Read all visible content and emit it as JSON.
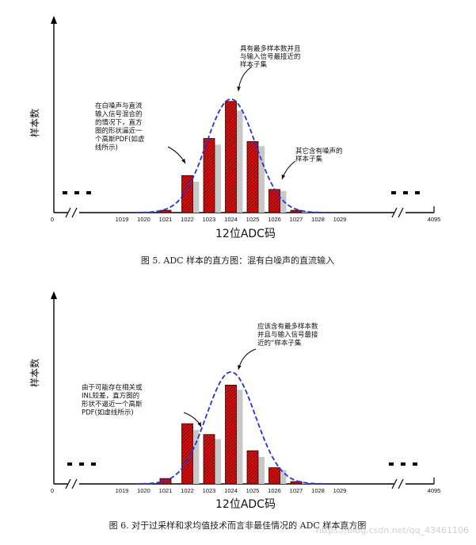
{
  "chart_data": [
    {
      "type": "bar",
      "caption": "图 5.   ADC 样本的直方图：混有白噪声的直流输入",
      "xlabel": "12位ADC码",
      "ylabel": "样本数",
      "x_edge_left": "0",
      "x_edge_right": "4095",
      "tick_labels": [
        "1019",
        "1020",
        "1021",
        "1022",
        "1023",
        "1024",
        "1025",
        "1026",
        "1027",
        "1028",
        "1029"
      ],
      "categories": [
        "1021",
        "1022",
        "1023",
        "1024",
        "1025",
        "1026",
        "1027"
      ],
      "series": [
        {
          "values": [
            3,
            48,
            96,
            144,
            92,
            30,
            3
          ]
        }
      ],
      "shadow_values": [
        0,
        40,
        88,
        132,
        86,
        28,
        2
      ],
      "ylim": [
        0,
        160
      ],
      "curve": {
        "mean": 1024,
        "sigma": 1.13,
        "peak": 147
      },
      "annotations": [
        {
          "lines": [
            "具有最多样本数并且",
            "与输入信号最接近的",
            "样本子集"
          ]
        },
        {
          "lines": [
            "在白噪声与直流",
            "输入信号混合的",
            "的情况下，直方",
            "图的形状逼近一",
            "个高斯PDF(如虚",
            "线所示)"
          ]
        },
        {
          "lines": [
            "其它含有噪声的",
            "样本子集"
          ]
        }
      ]
    },
    {
      "type": "bar",
      "caption": "图 6.  对于过采样和求均值技术而言非最佳情况的 ADC 样本直方图",
      "xlabel": "12位ADC码",
      "ylabel": "样本数",
      "x_edge_left": "0",
      "x_edge_right": "4095",
      "tick_labels": [
        "1019",
        "1020",
        "1021",
        "1022",
        "1023",
        "1024",
        "1025",
        "1026",
        "1027",
        "1028",
        "1029"
      ],
      "categories": [
        "1021",
        "1022",
        "1023",
        "1024",
        "1025",
        "1026",
        "1027"
      ],
      "series": [
        {
          "values": [
            7,
            78,
            64,
            128,
            43,
            21,
            3
          ]
        }
      ],
      "shadow_values": [
        0,
        70,
        58,
        122,
        35,
        18,
        2
      ],
      "ylim": [
        0,
        160
      ],
      "curve": {
        "mean": 1024,
        "sigma": 1.13,
        "peak": 145
      },
      "annotations": [
        {
          "lines": [
            "应该含有最多样本数",
            "并且与输入信号最接",
            "近的“样本子集"
          ]
        },
        {
          "lines": [
            "由于可能存在相关或",
            "INL较差，直方图的",
            "形状不逼近一个高斯",
            "PDF(如虚线所示)"
          ]
        }
      ]
    }
  ],
  "watermark": "https://blog.csdn.net/qq_43461106"
}
